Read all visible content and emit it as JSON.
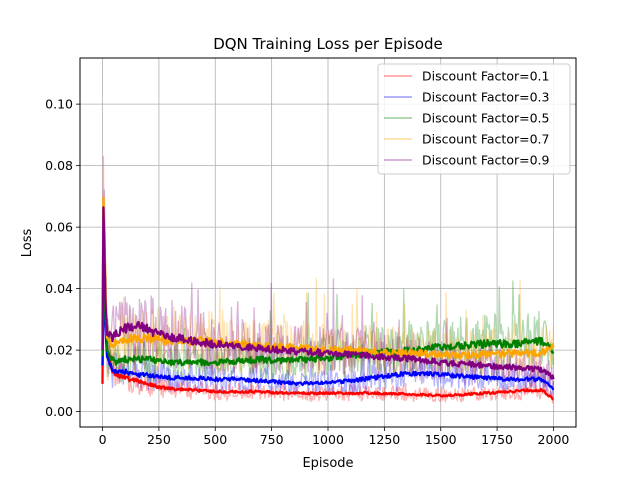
{
  "chart_data": {
    "type": "line",
    "title": "DQN Training Loss per Episode",
    "xlabel": "Episode",
    "ylabel": "Loss",
    "xlim": [
      -100,
      2100
    ],
    "ylim": [
      -0.005,
      0.115
    ],
    "xticks": [
      0,
      250,
      500,
      750,
      1000,
      1250,
      1500,
      1750,
      2000
    ],
    "xtick_labels": [
      "0",
      "250",
      "500",
      "750",
      "1000",
      "1250",
      "1500",
      "1750",
      "2000"
    ],
    "yticks": [
      0.0,
      0.02,
      0.04,
      0.06,
      0.08,
      0.1
    ],
    "ytick_labels": [
      "0.00",
      "0.02",
      "0.04",
      "0.06",
      "0.08",
      "0.10"
    ],
    "grid": true,
    "legend_position": "top-right",
    "x": [
      0,
      5,
      10,
      20,
      40,
      60,
      100,
      150,
      200,
      250,
      300,
      400,
      500,
      600,
      700,
      800,
      900,
      1000,
      1100,
      1200,
      1300,
      1400,
      1500,
      1600,
      1700,
      1800,
      1900,
      1950,
      2000
    ],
    "series": [
      {
        "name": "Discount Factor=0.1",
        "color": "#ff0000",
        "smoothed": [
          0.009,
          0.072,
          0.04,
          0.02,
          0.014,
          0.012,
          0.011,
          0.01,
          0.009,
          0.008,
          0.0075,
          0.007,
          0.0065,
          0.0065,
          0.0065,
          0.006,
          0.006,
          0.006,
          0.006,
          0.006,
          0.0058,
          0.0055,
          0.0052,
          0.0055,
          0.006,
          0.0065,
          0.007,
          0.007,
          0.004
        ]
      },
      {
        "name": "Discount Factor=0.3",
        "color": "#0000ff",
        "smoothed": [
          0.015,
          0.05,
          0.03,
          0.018,
          0.014,
          0.013,
          0.013,
          0.012,
          0.012,
          0.0115,
          0.011,
          0.011,
          0.0105,
          0.0105,
          0.01,
          0.0095,
          0.009,
          0.0095,
          0.01,
          0.011,
          0.012,
          0.0125,
          0.012,
          0.0115,
          0.011,
          0.0105,
          0.0105,
          0.0105,
          0.007
        ]
      },
      {
        "name": "Discount Factor=0.5",
        "color": "#008000",
        "smoothed": [
          0.018,
          0.06,
          0.035,
          0.02,
          0.017,
          0.016,
          0.017,
          0.017,
          0.017,
          0.0165,
          0.016,
          0.016,
          0.016,
          0.0165,
          0.017,
          0.0165,
          0.017,
          0.0175,
          0.0185,
          0.019,
          0.0195,
          0.02,
          0.021,
          0.0215,
          0.022,
          0.022,
          0.0225,
          0.023,
          0.02
        ]
      },
      {
        "name": "Discount Factor=0.7",
        "color": "#ffa500",
        "smoothed": [
          0.028,
          0.08,
          0.045,
          0.024,
          0.022,
          0.022,
          0.023,
          0.024,
          0.024,
          0.0235,
          0.023,
          0.023,
          0.0225,
          0.022,
          0.0215,
          0.021,
          0.0205,
          0.02,
          0.02,
          0.0195,
          0.019,
          0.019,
          0.0185,
          0.0185,
          0.0185,
          0.019,
          0.019,
          0.019,
          0.021
        ]
      },
      {
        "name": "Discount Factor=0.9",
        "color": "#800080",
        "smoothed": [
          0.02,
          0.078,
          0.04,
          0.025,
          0.024,
          0.025,
          0.027,
          0.028,
          0.027,
          0.025,
          0.024,
          0.023,
          0.022,
          0.021,
          0.0205,
          0.02,
          0.0195,
          0.019,
          0.0185,
          0.018,
          0.0175,
          0.017,
          0.016,
          0.0155,
          0.015,
          0.0145,
          0.014,
          0.0135,
          0.011
        ]
      }
    ]
  }
}
